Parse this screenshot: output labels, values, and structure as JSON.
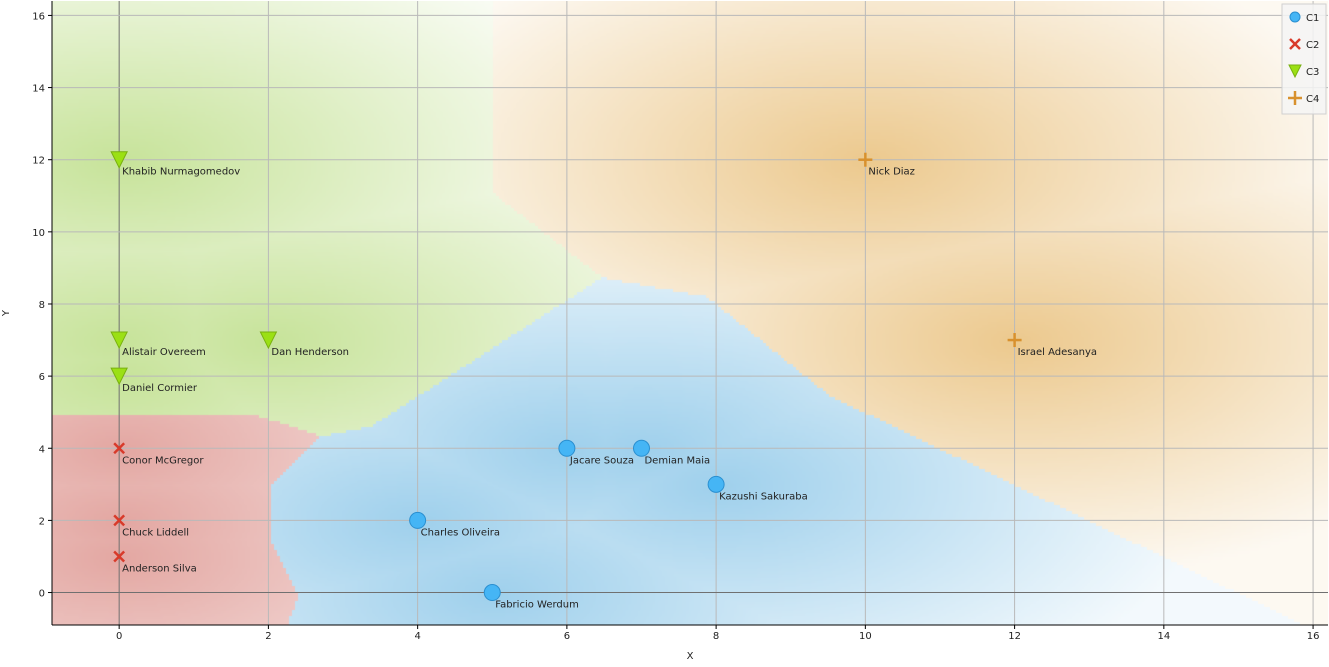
{
  "chart_data": {
    "type": "scatter",
    "xlabel": "X",
    "ylabel": "Y",
    "xlim": [
      -0.9,
      16.2
    ],
    "ylim": [
      -0.9,
      16.4
    ],
    "x_ticks": [
      0,
      2,
      4,
      6,
      8,
      10,
      12,
      14,
      16
    ],
    "y_ticks": [
      0,
      2,
      4,
      6,
      8,
      10,
      12,
      14,
      16
    ],
    "grid": true,
    "legend_position": "top-right",
    "decision_regions": true,
    "series": [
      {
        "name": "C1",
        "marker": "circle",
        "color": "#45b5f5",
        "region_color": "#9fd0ec",
        "points": [
          {
            "x": 6,
            "y": 4,
            "label": "Jacare Souza"
          },
          {
            "x": 7,
            "y": 4,
            "label": "Demian Maia"
          },
          {
            "x": 8,
            "y": 3,
            "label": "Kazushi Sakuraba"
          },
          {
            "x": 4,
            "y": 2,
            "label": "Charles Oliveira"
          },
          {
            "x": 5,
            "y": 0,
            "label": "Fabricio Werdum"
          }
        ]
      },
      {
        "name": "C2",
        "marker": "x",
        "color": "#d83a2a",
        "region_color": "#e3a7a2",
        "points": [
          {
            "x": 0,
            "y": 4,
            "label": "Conor McGregor"
          },
          {
            "x": 0,
            "y": 2,
            "label": "Chuck Liddell"
          },
          {
            "x": 0,
            "y": 1,
            "label": "Anderson Silva"
          }
        ]
      },
      {
        "name": "C3",
        "marker": "triangle-down",
        "color": "#9be014",
        "region_color": "#c7e39a",
        "points": [
          {
            "x": 0,
            "y": 12,
            "label": "Khabib Nurmagomedov"
          },
          {
            "x": 0,
            "y": 7,
            "label": "Alistair Overeem"
          },
          {
            "x": 2,
            "y": 7,
            "label": "Dan Henderson"
          },
          {
            "x": 0,
            "y": 6,
            "label": "Daniel Cormier"
          }
        ]
      },
      {
        "name": "C4",
        "marker": "plus",
        "color": "#d8912e",
        "region_color": "#ecc98e",
        "points": [
          {
            "x": 10,
            "y": 12,
            "label": "Nick Diaz"
          },
          {
            "x": 12,
            "y": 7,
            "label": "Israel Adesanya"
          }
        ]
      }
    ]
  }
}
